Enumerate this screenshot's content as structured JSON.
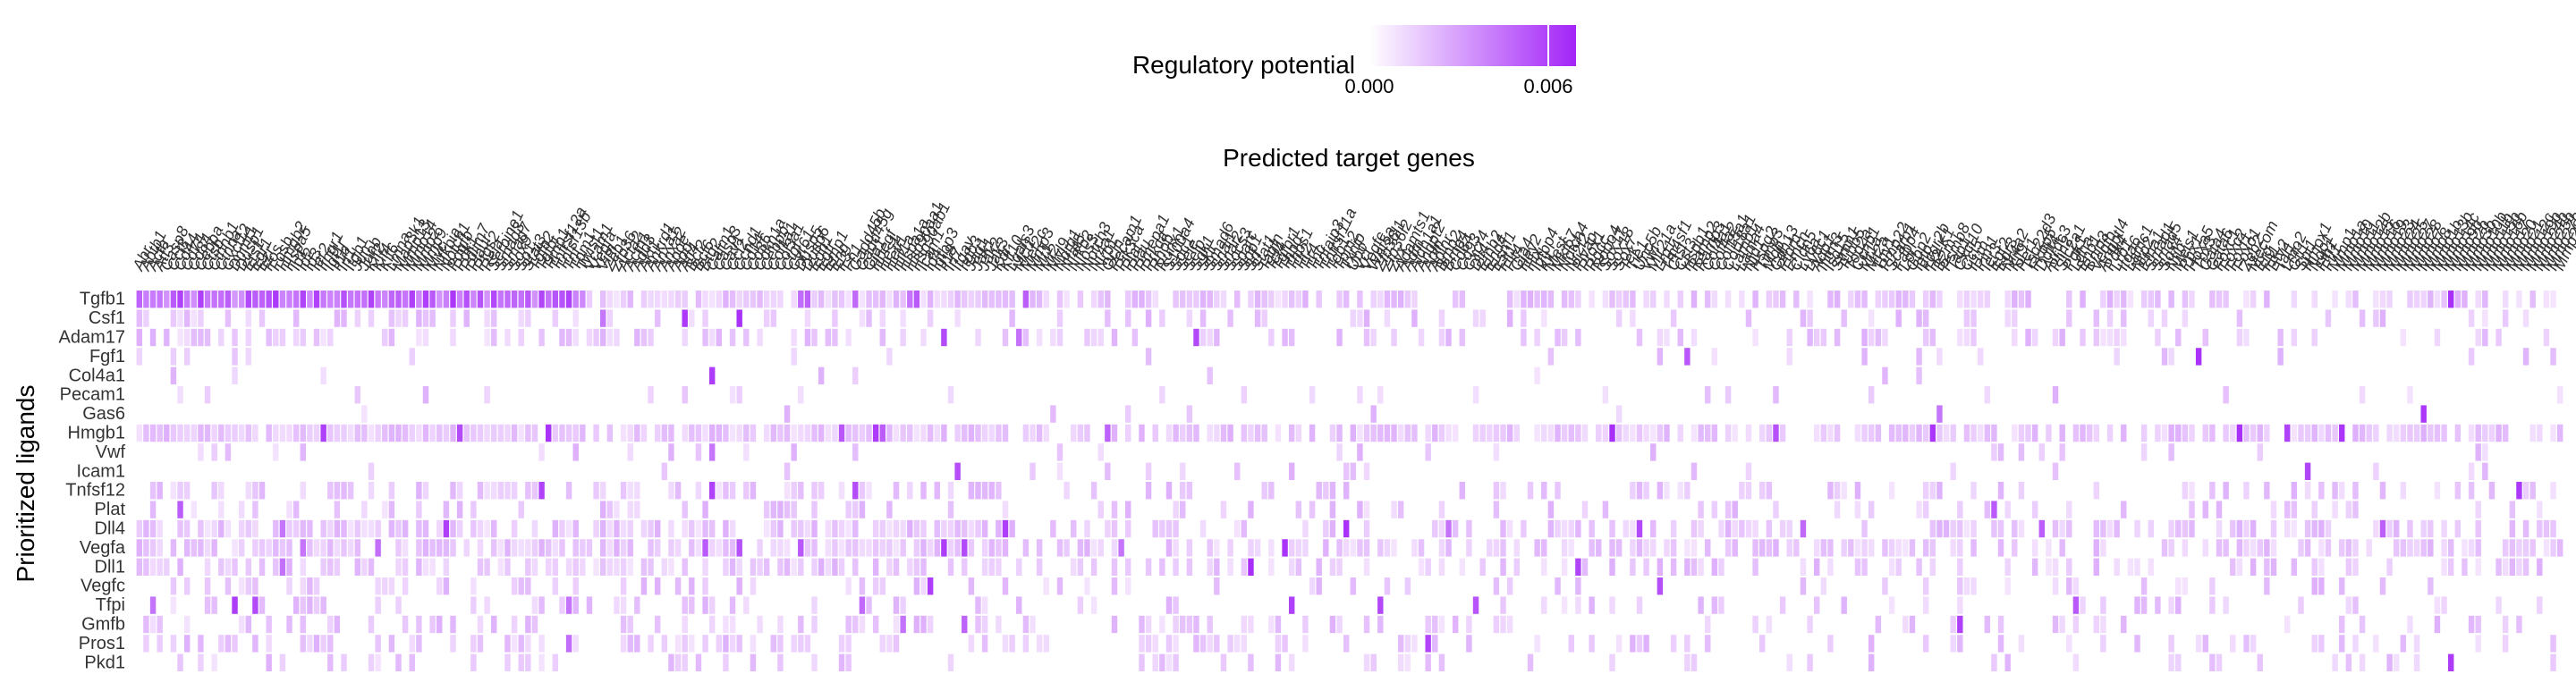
{
  "colors": {
    "background": "#ffffff",
    "cell_low": "#fcf5ff",
    "cell_high": "#a324f8",
    "text": "#000000",
    "tick_text": "#333333"
  },
  "chart_data": {
    "type": "heatmap",
    "x_title": "Predicted target genes",
    "y_title": "Prioritized ligands",
    "legend": {
      "title": "Regulatory potential",
      "tick_labels": [
        "0.000",
        "0.006"
      ],
      "min": 0.0,
      "max": 0.0065,
      "placement": "top"
    },
    "grid": false,
    "rows": [
      "Tgfb1",
      "Csf1",
      "Adam17",
      "Fgf1",
      "Col4a1",
      "Pecam1",
      "Gas6",
      "Hmgb1",
      "Vwf",
      "Icam1",
      "Tnfsf12",
      "Plat",
      "Dll4",
      "Vegfa",
      "Dll1",
      "Vegfc",
      "Tfpi",
      "Gmfb",
      "Pros1",
      "Pkd1"
    ],
    "visible_columns": [
      "Abr",
      "Abtb1",
      "Actb",
      "Atf3",
      "Casp8",
      "Ccl3",
      "Cd44",
      "Cd74",
      "Cd84",
      "Cebpa",
      "Crk",
      "Ctnnb1",
      "Ctnna",
      "Ctnnb2b1",
      "Cxcl12",
      "Dnmt1",
      "Dusp1",
      "Egr1",
      "Ezr",
      "Fos",
      "Fosb",
      "Ets1",
      "Hmgb2",
      "Hspa5",
      "Id1",
      "Id2",
      "Id3",
      "Ier2",
      "Ifngr1",
      "Igf1r",
      "Il1b",
      "Il6",
      "Irf1",
      "Itga5",
      "Itgb1",
      "Jun",
      "Junb",
      "Klf2",
      "Klf4",
      "Klf6",
      "Lmna",
      "Map2k1",
      "Map3k1",
      "Mapk1",
      "Mmp13",
      "Mmp14",
      "Mmp2",
      "Mmp9",
      "Myc",
      "Nfkb1",
      "Nfkbia",
      "Notch1",
      "Pdgfb",
      "Pdk1",
      "Pdlim1",
      "Pdlim7",
      "Plaur",
      "Ptgs2",
      "Rela",
      "Rhoa",
      "Serpine1",
      "Smad3",
      "Smad7",
      "Sox9",
      "Sp1",
      "Stat3",
      "Tgfb2",
      "Tgfbi",
      "Timp1",
      "Tnfrsf12a",
      "Tnfsf13b",
      "Tnf",
      "Tpm1",
      "Twist1",
      "Vcam1",
      "Vegfa",
      "Vim",
      "Zeb1",
      "Zfp36",
      "Acta2",
      "Actn1",
      "Add3",
      "Akt1",
      "Ankrd1",
      "Anxa1",
      "Anxa2",
      "Apoe",
      "App",
      "Arl4c",
      "Atf4",
      "Bcl2",
      "Bcl6",
      "Bhlhe40",
      "Btg2",
      "Calm1",
      "Casp3",
      "Cav1",
      "Ccl2",
      "Ccnd1",
      "Cd14",
      "Cd36",
      "Cd63",
      "Cdh5",
      "Cdkn1a",
      "Cdkn1b",
      "Cebpb",
      "Cebpd",
      "Col1a1",
      "Col3a1",
      "Csrp1",
      "Ctgf",
      "Cyr61",
      "Dusp5",
      "Dusp6",
      "Edn1",
      "Egfr",
      "Eif4e",
      "Emp1",
      "Eng",
      "Ets2",
      "F3",
      "Fn1",
      "Gadd45b",
      "Gadd45g",
      "Gata2",
      "Gja1",
      "Hbegf",
      "Hes1",
      "Hey1",
      "Hif1a",
      "Hk2",
      "Hspa1a",
      "Hsp90aa1",
      "Hsp90ab1",
      "Icam1",
      "Id4",
      "Ifit1",
      "Igfbp3",
      "Igfbp7",
      "Il18",
      "Irf7",
      "Itgav",
      "Itgb3",
      "Jag1",
      "Jak1",
      "Jak2",
      "Jak3",
      "Kdr",
      "Klf10",
      "Lgals3",
      "Ltbp1",
      "Mcl1",
      "Mef2c",
      "Mmp3",
      "Mt1",
      "Mt2",
      "Myl9",
      "Ndrg1",
      "Nes",
      "Nfat5",
      "Nfkb2",
      "Nos3",
      "Notch3",
      "Nr4a1",
      "Nrp1",
      "Ocln",
      "Pecam1",
      "Pik3ca",
      "Plat",
      "Plau",
      "Pmepa1",
      "Prkca",
      "Ptpn11",
      "Rhob",
      "Runx1",
      "S100a4",
      "Sdc1",
      "Sele",
      "Selp",
      "Serpinb2",
      "Sgk1",
      "Skil",
      "Smad6",
      "Snai1",
      "Snai2",
      "Socs3",
      "Sparc",
      "Spp1",
      "Srf",
      "Stat1",
      "Tagln",
      "Tcf4",
      "Tgfbr1",
      "Tgfbr2",
      "Thbd",
      "Thbs1",
      "Tlr2",
      "Tlr4",
      "Tnc",
      "Tnfaip3",
      "Tnfrsf11a",
      "Tob1",
      "Tpm2",
      "Txnip",
      "Ubc",
      "Vcl",
      "Vegfc",
      "Wnt5a",
      "Zfp36l1",
      "Zfp36l2",
      "Zyx",
      "Adamts1",
      "Adm",
      "Aldh1a1",
      "Angpt2",
      "Apln",
      "Aplnr",
      "Arid5b",
      "Bmp2",
      "Bmp4",
      "Cd34",
      "Cd93",
      "Cxcr4",
      "Dll4",
      "Efnb2",
      "Ehd4",
      "Esm1",
      "Flt1",
      "Flt4",
      "Gja4",
      "Hey2",
      "Hlx",
      "Igfbp4",
      "Kcne3",
      "Kit",
      "Lyve1",
      "Mest",
      "Mki67",
      "Notch4",
      "Nr2f2",
      "Plvap",
      "Prox1",
      "Rgcc",
      "Robo4",
      "Sox17",
      "Sox18",
      "Sox7",
      "Tek",
      "Tie1",
      "Unc5b",
      "Vwf",
      "Zfp983",
      "Mir21a",
      "Malat1",
      "Neat1",
      "Lrg1",
      "Fam83a",
      "Tmem100",
      "Tm4sf1",
      "Ctsl",
      "Cst3",
      "Gpihbp1",
      "Kdm6b",
      "Hspb1",
      "Iigp1",
      "Ramp2",
      "Ramp3",
      "Sparcl1",
      "Slc6a6",
      "Col4a1",
      "Col4a2",
      "Col15a1",
      "Col18a1",
      "Lamb1",
      "Lama4",
      "Nid1",
      "Hspg2",
      "Mmp12",
      "Timp3",
      "Mgp",
      "Cdh13",
      "Ptprb",
      "Tspan7",
      "Emcn",
      "Cldn5",
      "Ly6a",
      "Ly6c1",
      "Ly6e",
      "Car4",
      "Aqp1",
      "Bst2",
      "Ifitm3",
      "Isg15",
      "Rtp4",
      "Stmn1",
      "Tubb5",
      "Pclaf",
      "Top2a",
      "Hist1h2ap",
      "Ccnb1",
      "Cenpf",
      "Mt1a",
      "Mt2a",
      "Thy1",
      "Pmp22",
      "Scarb1",
      "Fabp4",
      "Cd300lg",
      "Lpl",
      "Cd36b",
      "Gbp2",
      "Gbp7",
      "Igtp",
      "Irgm1",
      "Fcgr2b",
      "H2-K1",
      "H2-D1",
      "B2m",
      "Psmb8",
      "Psmb9",
      "Tap1",
      "Cxcl10",
      "Cxcl9",
      "Ccl5",
      "Il1rn",
      "Nfkbiz",
      "Pim1",
      "Ier3",
      "Egr2",
      "Egr3",
      "Nr4a2",
      "Nr4a3",
      "Klf9",
      "Per1",
      "Dbp",
      "Tsc22d3",
      "Fkbp5",
      "Sesn1",
      "Ddit4",
      "Txnip2",
      "Arrdc3",
      "Arrdc4",
      "Mmp14b",
      "Plin2",
      "Hilpda",
      "Slc2a1",
      "Pgk1",
      "Ldha",
      "Eno1",
      "Bnip3",
      "Vegfb",
      "Angptl4",
      "Pdk4",
      "Cpt1a",
      "Acadl",
      "Hmgcs2",
      "Lrp1",
      "Itga6",
      "Itgb4",
      "Lamc1",
      "Nrp2",
      "Plxnd1",
      "Sema3f",
      "Efna1",
      "Eph4",
      "Tmem252",
      "Cxcl12b",
      "Kdm5b",
      "Smad1",
      "Smad5",
      "Id1b",
      "Ankrd37",
      "Tmem204",
      "Sox4",
      "Sox11",
      "Sox13",
      "Nfib",
      "Meis1",
      "Meis2",
      "Pbx1",
      "Hoxa5",
      "Hoxb5",
      "Tbx2",
      "Tbx3",
      "Gata4",
      "Gata6",
      "Foxc1",
      "Foxc2",
      "Foxf1",
      "Foxo1",
      "Foxp1",
      "Tshz2",
      "Zeb2",
      "Prdm16",
      "Mecom",
      "Erg",
      "Fli1",
      "Ets1b",
      "Etv2",
      "Tal1",
      "Lmo2",
      "Runx1b",
      "Gfi1",
      "Spi1",
      "Cebpa2",
      "Klf1",
      "Gata1",
      "Hba-a1",
      "Hbb-bs",
      "Alas2",
      "Car2",
      "Slc4a1",
      "Epor",
      "Tfrc",
      "Fech",
      "Urod",
      "Blvrb",
      "Prdx2",
      "Sod1",
      "Cat",
      "Gpx1",
      "Gpx4",
      "Txn1",
      "Txnrd1",
      "Srxn1",
      "Hmox1",
      "Nqo1",
      "Gclm",
      "Gclc",
      "Slc7a11",
      "Fth1",
      "Ftl1",
      "Mt3",
      "Cox7a1",
      "Cox4i1",
      "Mmp1"
    ],
    "ticks": [
      "Abr",
      "Abtb1",
      "Actb",
      "Atf3",
      "Casp8",
      "Ccl3",
      "Cd44",
      "Cd74",
      "Cd84",
      "Cebpa",
      "Ctsb",
      "Ctnnb1",
      "Ctnna",
      "Cxcl12",
      "Dnmt1",
      "Dusp1",
      "Ets1",
      "Egr1",
      "Ezr",
      "Fos",
      "Fosb",
      "Hmgb2",
      "Hspa5",
      "Id1",
      "Id2",
      "Id3",
      "Ier2",
      "Ifngr1",
      "Igf1r",
      "Il1b",
      "Irf1",
      "Itgb1",
      "Jun",
      "Junb",
      "Klf2",
      "Klf4",
      "Klf6",
      "Lmna",
      "Map3k1",
      "Mmp13",
      "Mmp14",
      "Mmp2",
      "Mmp9",
      "Myc",
      "Nfkbia",
      "Notch1",
      "Pdgfb",
      "Pdk1",
      "Pdlim7",
      "Plaur",
      "Ptgs2",
      "Rela",
      "Serpine1",
      "Smad3",
      "Smad7",
      "Sox9",
      "Sp1",
      "Stat3",
      "Tgfb2",
      "Tgfbi",
      "Timp1",
      "Tnfrsf12a",
      "Tnfsf13b",
      "Tnf",
      "Tpm1",
      "Twist1",
      "Vcam1",
      "Vegfa",
      "Vim",
      "Zeb1",
      "Zfp36",
      "Acta2",
      "Actn1",
      "Add3",
      "Akt1",
      "Ankrd1",
      "Anxa1",
      "Anxa2",
      "Apoe",
      "App",
      "Atf4",
      "Bcl2",
      "Bcl6",
      "Btg2",
      "Calm1",
      "Casp3",
      "Cav1",
      "Ccl2",
      "Ccnd1",
      "Cd14",
      "Cd36",
      "Cdkn1a",
      "Cebpb",
      "Col1a1",
      "Col3a1",
      "Ctgf",
      "Cyr61",
      "Dusp5",
      "Dusp6",
      "Edn1",
      "Egfr",
      "Emp1",
      "Eng",
      "F3",
      "Fn1",
      "Gadd45b",
      "Gadd45g",
      "Gja1",
      "Hbegf",
      "Hes1",
      "Hey1",
      "Hif1a",
      "Hspa1a",
      "Hsp90aa1",
      "Hsp90ab1",
      "Icam1",
      "Id4",
      "Igfbp3",
      "Il18",
      "Irf7",
      "Itgav",
      "Itgb3",
      "Jag1",
      "Jak1",
      "Jak2",
      "Jak3",
      "Kdr",
      "Klf10",
      "Lgals3",
      "Mcl1",
      "Mef2c",
      "Mmp3",
      "Mt1",
      "Mt2",
      "Myl9",
      "Ndrg1",
      "Nfat5",
      "Nfkb2",
      "Nos3",
      "Notch3",
      "Nr4a1",
      "Nrp1",
      "Ocln",
      "Pecam1",
      "Pik3ca",
      "Plat",
      "Plau",
      "Pmepa1",
      "Prkca",
      "Rhob",
      "Runx1",
      "S100a4",
      "Sdc1",
      "Sele",
      "Selp",
      "Sgk1",
      "Skil",
      "Smad6",
      "Snai1",
      "Snai2",
      "Socs3",
      "Sparc",
      "Spp1",
      "Srf",
      "Stat1",
      "Tagln",
      "Tcf4",
      "Tgfbr1",
      "Thbd",
      "Thbs1",
      "Tlr2",
      "Tlr4",
      "Tnc",
      "Tnfaip3",
      "Tnfrsf11a",
      "Tob1",
      "Tpm2",
      "Txnip",
      "Ubc",
      "Vcl",
      "Vegfc",
      "Wnt5a",
      "Zfp36l1",
      "Zfp36l2",
      "Zyx",
      "Adamts1",
      "Adm",
      "Aldh1a1",
      "Angpt2",
      "Apln",
      "Aplnr",
      "Bmp2",
      "Bmp4",
      "Cd34",
      "Cd93",
      "Cxcr4",
      "Dll4",
      "Efnb2",
      "Ehd4",
      "Esm1",
      "Flt1",
      "Flt4",
      "Gja4",
      "Hey2",
      "Hlx",
      "Igfbp4",
      "Kit",
      "Mest",
      "Mki67",
      "Notch4",
      "Nr2f2",
      "Plvap",
      "Prox1",
      "Rgcc",
      "Robo4",
      "Sox17",
      "Sox18",
      "Sox7",
      "Tek",
      "Tie1",
      "Unc5b",
      "Vwf",
      "Mir21a",
      "Lrg1",
      "Tm4sf1",
      "Ctsl",
      "Cst3",
      "Hspb1",
      "Ramp2",
      "Ramp3",
      "Col4a1",
      "Col4a2",
      "Col15a1",
      "Col18a1",
      "Lamb1",
      "Lama4",
      "Nid1",
      "Hspg2",
      "Timp3",
      "Mgp",
      "Cdh13",
      "Ptprb",
      "Emcn",
      "Cldn5",
      "Ly6a",
      "Ly6c1",
      "Aqp1",
      "Ifitm3",
      "Isg15",
      "Stmn1",
      "Tubb5",
      "Top2a",
      "Ccnb1",
      "Mt1a",
      "Mt2a",
      "Thy1",
      "Pmp22",
      "Scarb1",
      "Fabp4",
      "Lpl",
      "Gbp2",
      "Igtp",
      "Fcgr2b",
      "H2-K1",
      "B2m",
      "Psmb8",
      "Tap1",
      "Cxcl10",
      "Ccl5",
      "Il1rn",
      "Pim1",
      "Ier3",
      "Egr2",
      "Egr3",
      "Nr4a2",
      "Klf9",
      "Per1",
      "Tsc22d3",
      "Fkbp5",
      "Ddit4",
      "Arrdc3",
      "Plin2",
      "Slc2a1",
      "Pgk1",
      "Ldha",
      "Eno1",
      "Bnip3",
      "Vegfb",
      "Angptl4",
      "Pdk4",
      "Lrp1",
      "Itga6",
      "Lamc1",
      "Nrp2",
      "Efna1",
      "Smad1",
      "Smad5",
      "Sox4",
      "Nfib",
      "Meis1",
      "Pbx1",
      "Hoxa5",
      "Tbx3",
      "Gata4",
      "Gata6",
      "Foxc1",
      "Foxc2",
      "Foxf1",
      "Foxo1",
      "Zeb2",
      "Mecom",
      "Erg",
      "Fli1",
      "Etv2",
      "Tal1",
      "Lmo2",
      "Gfi1",
      "Spi1",
      "Hmox1",
      "Nqo1",
      "Fth1",
      "Ftl1",
      "Mmp1",
      "Mmp1a",
      "Mmp10",
      "Mmp11",
      "Mmp12b",
      "Mmp15",
      "Mmp16",
      "Mmp19",
      "Mmp23",
      "Mmp24",
      "Mmp25",
      "Mmp27",
      "Mmp28",
      "Mmp7",
      "Mmp8",
      "Mmp1b",
      "Mmp13b",
      "Mmp14c",
      "Mmp9b",
      "Mmp2b",
      "Mmp3b",
      "Mmp10b",
      "Mmp11b",
      "Mmp15b",
      "Mmp16b",
      "Mmp17",
      "Mmp20",
      "Mmp21",
      "Mmp12c",
      "Mmp19b",
      "Mmp24b",
      "Mmp25b",
      "Mmp27b",
      "Mmp28b"
    ]
  }
}
